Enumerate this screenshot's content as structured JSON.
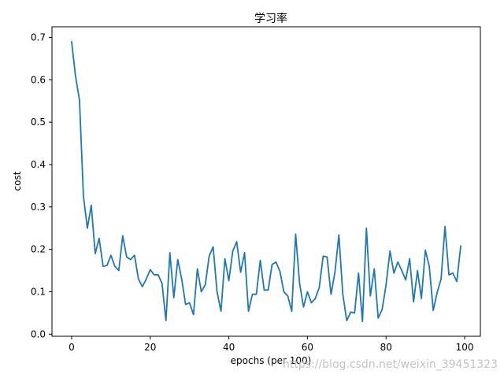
{
  "chart_data": {
    "type": "line",
    "title": "学习率",
    "xlabel": "epochs (per 100)",
    "ylabel": "cost",
    "xlim": [
      -5,
      104
    ],
    "ylim": [
      -0.005,
      0.725
    ],
    "xticks": [
      0,
      20,
      40,
      60,
      80,
      100
    ],
    "yticks": [
      0.0,
      0.1,
      0.2,
      0.3,
      0.4,
      0.5,
      0.6,
      0.7
    ],
    "grid": false,
    "line_color": "#1f77b4",
    "watermark_text": "https://blog.csdn.net/weixin_39451323",
    "series": [
      {
        "x": [
          0,
          1,
          2,
          3,
          4,
          5,
          6,
          7,
          8,
          9,
          10,
          11,
          12,
          13,
          14,
          15,
          16,
          17,
          18,
          19,
          20,
          21,
          22,
          23,
          24,
          25,
          26,
          27,
          28,
          29,
          30,
          31,
          32,
          33,
          34,
          35,
          36,
          37,
          38,
          39,
          40,
          41,
          42,
          43,
          44,
          45,
          46,
          47,
          48,
          49,
          50,
          51,
          52,
          53,
          54,
          55,
          56,
          57,
          58,
          59,
          60,
          61,
          62,
          63,
          64,
          65,
          66,
          67,
          68,
          69,
          70,
          71,
          72,
          73,
          74,
          75,
          76,
          77,
          78,
          79,
          80,
          81,
          82,
          83,
          84,
          85,
          86,
          87,
          88,
          89,
          90,
          91,
          92,
          93,
          94,
          95,
          96,
          97,
          98,
          99
        ],
        "y": [
          0.69,
          0.608,
          0.552,
          0.326,
          0.25,
          0.304,
          0.19,
          0.226,
          0.16,
          0.162,
          0.186,
          0.16,
          0.15,
          0.232,
          0.182,
          0.176,
          0.186,
          0.13,
          0.112,
          0.13,
          0.152,
          0.14,
          0.14,
          0.12,
          0.032,
          0.192,
          0.086,
          0.176,
          0.13,
          0.07,
          0.074,
          0.046,
          0.154,
          0.1,
          0.116,
          0.184,
          0.206,
          0.1,
          0.054,
          0.178,
          0.126,
          0.196,
          0.218,
          0.146,
          0.192,
          0.054,
          0.094,
          0.094,
          0.174,
          0.104,
          0.104,
          0.164,
          0.17,
          0.148,
          0.1,
          0.09,
          0.054,
          0.236,
          0.12,
          0.064,
          0.1,
          0.074,
          0.084,
          0.11,
          0.184,
          0.182,
          0.094,
          0.146,
          0.234,
          0.094,
          0.032,
          0.052,
          0.05,
          0.144,
          0.03,
          0.25,
          0.09,
          0.154,
          0.038,
          0.058,
          0.116,
          0.196,
          0.144,
          0.17,
          0.15,
          0.128,
          0.178,
          0.076,
          0.15,
          0.084,
          0.198,
          0.16,
          0.056,
          0.098,
          0.13,
          0.254,
          0.14,
          0.144,
          0.124,
          0.208
        ]
      }
    ]
  }
}
